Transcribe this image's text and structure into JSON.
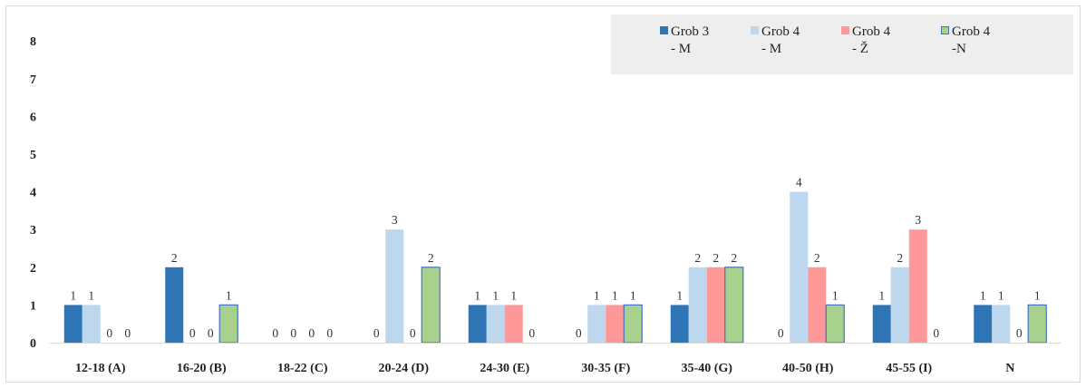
{
  "chart_data": {
    "type": "bar",
    "categories": [
      "12-18 (A)",
      "16-20 (B)",
      "18-22 (C)",
      "20-24 (D)",
      "24-30 (E)",
      "30-35 (F)",
      "35-40 (G)",
      "40-50 (H)",
      "45-55 (I)",
      "N"
    ],
    "series": [
      {
        "name": "Grob 3\n- M",
        "color": "#2e75b6",
        "values": [
          1,
          2,
          0,
          0,
          1,
          0,
          1,
          0,
          1,
          1
        ]
      },
      {
        "name": "Grob 4\n- M",
        "color": "#bdd7ee",
        "values": [
          1,
          0,
          0,
          3,
          1,
          1,
          2,
          4,
          2,
          1
        ]
      },
      {
        "name": "Grob 4\n- Ž",
        "color": "#ff9999",
        "values": [
          0,
          0,
          0,
          0,
          1,
          1,
          2,
          2,
          3,
          0
        ]
      },
      {
        "name": "Grob 4\n-N",
        "color": "#a9d18e",
        "border": "#4472c4",
        "values": [
          0,
          1,
          0,
          2,
          0,
          1,
          2,
          1,
          0,
          1
        ]
      }
    ],
    "data_labels": [
      [
        "1",
        "1",
        "0",
        "0"
      ],
      [
        "2",
        "0",
        "0",
        "1"
      ],
      [
        "0",
        "0",
        "0",
        "0"
      ],
      [
        "0",
        "3",
        "0",
        "2"
      ],
      [
        "1",
        "1",
        "1",
        "0"
      ],
      [
        "0",
        "1",
        "1",
        "1"
      ],
      [
        "1",
        "2",
        "2",
        "2"
      ],
      [
        "0",
        "4",
        "2",
        "1"
      ],
      [
        "1",
        "2",
        "3",
        "0"
      ],
      [
        "1",
        "1",
        "0",
        "1"
      ]
    ],
    "ylim": [
      0,
      8
    ],
    "yticks": [
      0,
      1,
      2,
      3,
      4,
      5,
      6,
      7,
      8
    ],
    "grid": false,
    "legend_position": "top-right"
  }
}
